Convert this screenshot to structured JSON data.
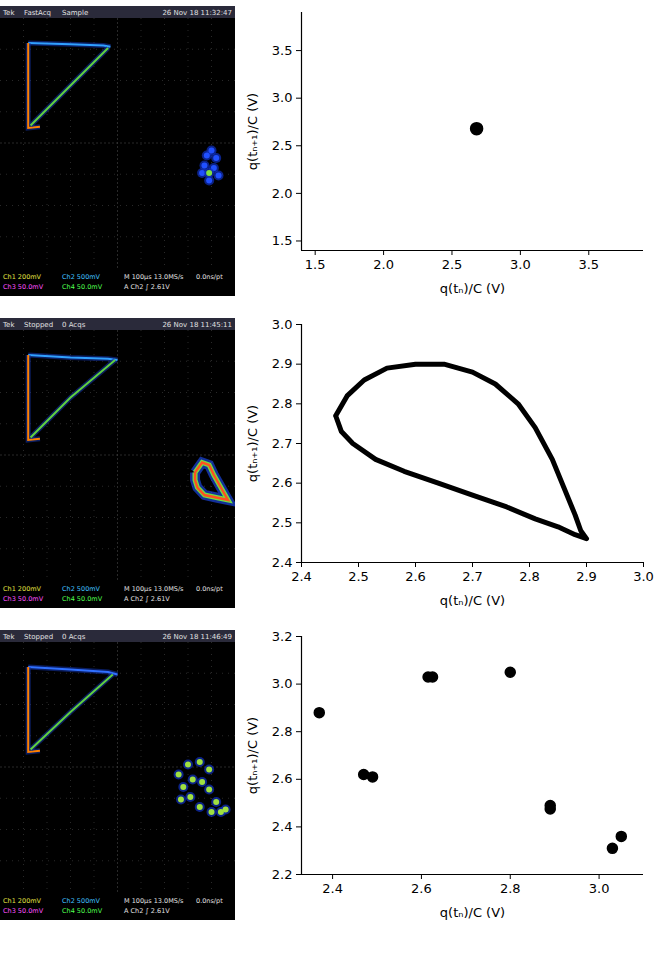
{
  "chart_data": [
    {
      "type": "scatter",
      "x_label": "q(tₙ)/C (V)",
      "y_label": "q(tₙ₊₁)/C (V)",
      "xlim": [
        1.4,
        3.9
      ],
      "ylim": [
        1.4,
        3.9
      ],
      "xticks": [
        1.5,
        {
          "value": 2,
          "label": "2.0"
        },
        2.5,
        {
          "value": 3,
          "label": "3.0"
        },
        3.5
      ],
      "yticks": [
        1.5,
        {
          "value": 2,
          "label": "2.0"
        },
        2.5,
        {
          "value": 3,
          "label": "3.0"
        },
        3.5
      ],
      "grid": false,
      "series": [
        {
          "name": null,
          "color": "#000000",
          "marker": "circle",
          "x": [
            2.68
          ],
          "values": [
            2.68
          ]
        }
      ]
    },
    {
      "type": "line",
      "x_label": "q(tₙ)/C (V)",
      "y_label": "q(tₙ₊₁)/C (V)",
      "xlim": [
        2.4,
        3.0
      ],
      "ylim": [
        2.4,
        3.0
      ],
      "xticks": [
        2.4,
        2.5,
        2.6,
        2.7,
        2.8,
        2.9,
        {
          "value": 3,
          "label": "3.0"
        }
      ],
      "yticks": [
        2.4,
        2.5,
        2.6,
        2.7,
        2.8,
        2.9,
        {
          "value": 3,
          "label": "3.0"
        }
      ],
      "grid": false,
      "series": [
        {
          "name": null,
          "color": "#000000",
          "line_style": "solid",
          "x": [
            2.46,
            2.48,
            2.51,
            2.55,
            2.6,
            2.65,
            2.7,
            2.74,
            2.78,
            2.81,
            2.84,
            2.86,
            2.88,
            2.89,
            2.9,
            2.88,
            2.85,
            2.81,
            2.76,
            2.7,
            2.64,
            2.58,
            2.53,
            2.49,
            2.47,
            2.46
          ],
          "values": [
            2.77,
            2.82,
            2.86,
            2.89,
            2.9,
            2.9,
            2.88,
            2.85,
            2.8,
            2.74,
            2.66,
            2.59,
            2.52,
            2.48,
            2.46,
            2.47,
            2.49,
            2.51,
            2.54,
            2.57,
            2.6,
            2.63,
            2.66,
            2.7,
            2.73,
            2.77
          ]
        }
      ]
    },
    {
      "type": "scatter",
      "x_label": "q(tₙ)/C (V)",
      "y_label": "q(tₙ₊₁)/C (V)",
      "xlim": [
        2.33,
        3.1
      ],
      "ylim": [
        2.2,
        3.2
      ],
      "xticks": [
        2.4,
        2.6,
        2.8,
        {
          "value": 3,
          "label": "3.0"
        }
      ],
      "yticks": [
        2.2,
        2.4,
        2.6,
        2.8,
        {
          "value": 3,
          "label": "3.0"
        },
        3.2
      ],
      "grid": false,
      "series": [
        {
          "name": null,
          "color": "#000000",
          "marker": "circle",
          "x": [
            2.37,
            2.47,
            2.49,
            2.615,
            2.625,
            2.8,
            2.89,
            2.89,
            3.03,
            3.05
          ],
          "values": [
            2.88,
            2.62,
            2.61,
            3.03,
            3.03,
            3.05,
            2.475,
            2.49,
            2.31,
            2.36
          ]
        }
      ]
    }
  ],
  "screenshots": [
    {
      "header": [
        "Tek",
        "FastAcq",
        "Sample",
        "26 Nov 18 11:32:47"
      ],
      "footer": [
        [
          "Ch1 200mV",
          "Ch2 500mV",
          "M 100µs 13.0MS/s",
          "0.0ns/pt"
        ],
        [
          "Ch3 50.0mV",
          "Ch4 50.0mV",
          "A Ch2 ∫ 2.61V"
        ]
      ],
      "traces": [
        {
          "color": "#30a0ff",
          "points": [
            [
              0.12,
              0.1
            ],
            [
              0.3,
              0.105
            ],
            [
              0.44,
              0.11
            ],
            [
              0.47,
              0.115
            ]
          ]
        },
        {
          "color": "#ff8000",
          "points": [
            [
              0.12,
              0.1
            ],
            [
              0.12,
              0.44
            ],
            [
              0.17,
              0.435
            ]
          ]
        },
        {
          "color": "#60d040",
          "points": [
            [
              0.13,
              0.43
            ],
            [
              0.3,
              0.27
            ],
            [
              0.46,
              0.12
            ]
          ]
        }
      ],
      "halo": [],
      "spots": [
        {
          "color": "#2050ff",
          "points": [
            [
              0.88,
              0.55
            ],
            [
              0.9,
              0.53
            ],
            [
              0.92,
              0.56
            ],
            [
              0.87,
              0.59
            ],
            [
              0.91,
              0.6
            ],
            [
              0.93,
              0.63
            ],
            [
              0.89,
              0.65
            ],
            [
              0.86,
              0.62
            ]
          ]
        },
        {
          "color": "#80e040",
          "points": [
            [
              0.89,
              0.62
            ]
          ]
        }
      ]
    },
    {
      "header": [
        "Tek",
        "Stopped",
        "0 Acqs",
        "26 Nov 18 11:45:11"
      ],
      "footer": [
        [
          "Ch1 200mV",
          "Ch2 500mV",
          "M 100µs 13.0MS/s",
          "0.0ns/pt"
        ],
        [
          "Ch3 50.0mV",
          "Ch4 50.0mV",
          "A Ch2 ∫ 2.61V"
        ]
      ],
      "traces": [
        {
          "color": "#30a0ff",
          "points": [
            [
              0.12,
              0.1
            ],
            [
              0.3,
              0.11
            ],
            [
              0.46,
              0.115
            ],
            [
              0.5,
              0.12
            ]
          ]
        },
        {
          "color": "#ff8000",
          "points": [
            [
              0.12,
              0.1
            ],
            [
              0.12,
              0.44
            ],
            [
              0.17,
              0.435
            ]
          ]
        },
        {
          "color": "#60d040",
          "points": [
            [
              0.13,
              0.43
            ],
            [
              0.3,
              0.27
            ],
            [
              0.49,
              0.12
            ]
          ]
        }
      ],
      "halo": [
        {
          "color": "#ff5020",
          "points": [
            [
              0.83,
              0.57
            ],
            [
              0.86,
              0.53
            ],
            [
              0.89,
              0.54
            ],
            [
              0.91,
              0.58
            ],
            [
              0.94,
              0.63
            ],
            [
              0.97,
              0.68
            ],
            [
              0.92,
              0.67
            ],
            [
              0.87,
              0.66
            ],
            [
              0.84,
              0.63
            ],
            [
              0.83,
              0.6
            ],
            [
              0.83,
              0.57
            ]
          ]
        }
      ],
      "spots": []
    },
    {
      "header": [
        "Tek",
        "Stopped",
        "0 Acqs",
        "26 Nov 18 11:46:49"
      ],
      "footer": [
        [
          "Ch1 200mV",
          "Ch2 500mV",
          "M 100µs 13.0MS/s",
          "0.0ns/pt"
        ],
        [
          "Ch3 50.0mV",
          "Ch4 50.0mV",
          "A Ch2 ∫ 2.61V"
        ]
      ],
      "traces": [
        {
          "color": "#3070ff",
          "points": [
            [
              0.12,
              0.1
            ],
            [
              0.3,
              0.11
            ],
            [
              0.46,
              0.12
            ],
            [
              0.5,
              0.13
            ]
          ]
        },
        {
          "color": "#ff8000",
          "points": [
            [
              0.12,
              0.1
            ],
            [
              0.12,
              0.44
            ],
            [
              0.17,
              0.435
            ]
          ]
        },
        {
          "color": "#60d040",
          "points": [
            [
              0.13,
              0.43
            ],
            [
              0.3,
              0.28
            ],
            [
              0.48,
              0.13
            ]
          ]
        }
      ],
      "halo": [],
      "spots": [
        {
          "color": "#a0e040",
          "points": [
            [
              0.76,
              0.53
            ],
            [
              0.8,
              0.49
            ],
            [
              0.85,
              0.48
            ],
            [
              0.89,
              0.51
            ],
            [
              0.78,
              0.58
            ],
            [
              0.82,
              0.55
            ],
            [
              0.86,
              0.56
            ],
            [
              0.89,
              0.59
            ],
            [
              0.77,
              0.63
            ],
            [
              0.81,
              0.62
            ],
            [
              0.92,
              0.64
            ],
            [
              0.85,
              0.66
            ],
            [
              0.9,
              0.68
            ],
            [
              0.94,
              0.68
            ],
            [
              0.96,
              0.67
            ]
          ]
        }
      ]
    }
  ]
}
